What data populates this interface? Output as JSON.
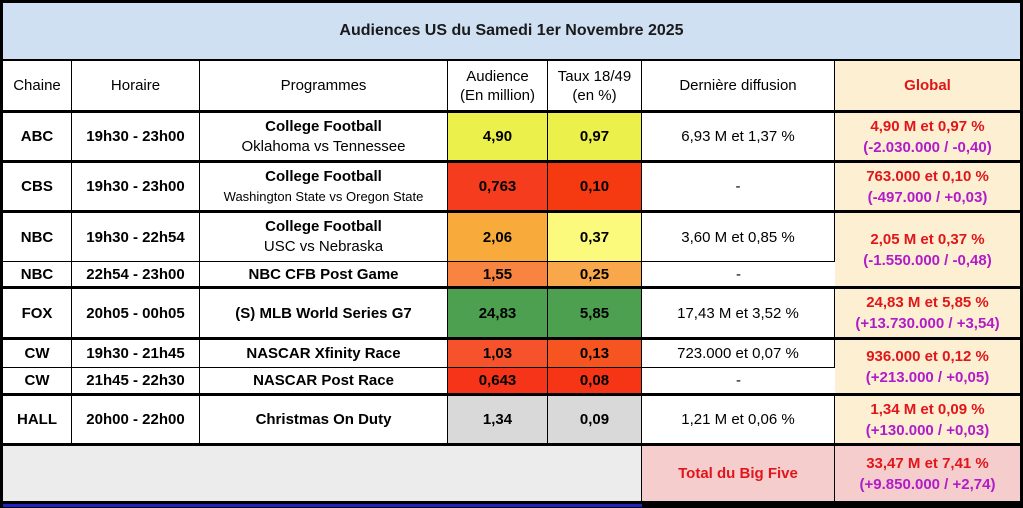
{
  "title": "Audiences US du Samedi 1er Novembre 2025",
  "headers": {
    "chaine": "Chaine",
    "horaire": "Horaire",
    "programmes": "Programmes",
    "audience_l1": "Audience",
    "audience_l2": "(En million)",
    "taux_l1": "Taux 18/49",
    "taux_l2": "(en %)",
    "derniere": "Dernière diffusion",
    "global": "Global"
  },
  "colors": {
    "title_bg": "#cfe0f2",
    "global_bg": "#fdefd2",
    "global_text": "#e0161a",
    "global_delta_text": "#b01cc8",
    "big_five_bg": "#f6cdcd"
  },
  "chart_data": {
    "type": "table",
    "title": "Audiences US du Samedi 1er Novembre 2025",
    "columns": [
      "Chaine",
      "Horaire",
      "Programmes",
      "Audience (En million)",
      "Taux 18/49 (en %)",
      "Dernière diffusion",
      "Global"
    ],
    "rows": [
      {
        "chaine": "ABC",
        "horaire": "19h30 - 23h00",
        "programme": "College Football",
        "sous_titre": "Oklahoma vs Tennessee",
        "audience": "4,90",
        "audience_color": "#ecf04a",
        "taux": "0,97",
        "taux_color": "#ecf04a",
        "derniere": "6,93 M et 1,37 %"
      },
      {
        "chaine": "CBS",
        "horaire": "19h30 - 23h00",
        "programme": "College Football",
        "sous_titre": "Washington State vs Oregon State",
        "audience": "0,763",
        "audience_color": "#f53c1e",
        "taux": "0,10",
        "taux_color": "#f53a12",
        "derniere": "-"
      },
      {
        "chaine": "NBC",
        "horaire": "19h30 - 22h54",
        "programme": "College Football",
        "sous_titre": "USC vs Nebraska",
        "audience": "2,06",
        "audience_color": "#f8ab3a",
        "taux": "0,37",
        "taux_color": "#fbfa7c",
        "derniere": "3,60 M et 0,85 %"
      },
      {
        "chaine": "NBC",
        "horaire": "22h54 - 23h00",
        "programme": "NBC CFB Post Game",
        "sous_titre": "",
        "audience": "1,55",
        "audience_color": "#f78440",
        "taux": "0,25",
        "taux_color": "#f8a84a",
        "derniere": "-"
      },
      {
        "chaine": "FOX",
        "horaire": "20h05 - 00h05",
        "programme": "(S) MLB World Series G7",
        "sous_titre": "",
        "audience": "24,83",
        "audience_color": "#4ca050",
        "taux": "5,85",
        "taux_color": "#4ca050",
        "derniere": "17,43 M et 3,52 %"
      },
      {
        "chaine": "CW",
        "horaire": "19h30 - 21h45",
        "programme": "NASCAR Xfinity Race",
        "sous_titre": "",
        "audience": "1,03",
        "audience_color": "#f6522c",
        "taux": "0,13",
        "taux_color": "#f65522",
        "derniere": "723.000 et 0,07 %"
      },
      {
        "chaine": "CW",
        "horaire": "21h45 - 22h30",
        "programme": "NASCAR Post Race",
        "sous_titre": "",
        "audience": "0,643",
        "audience_color": "#f53419",
        "taux": "0,08",
        "taux_color": "#f53516",
        "derniere": "-"
      },
      {
        "chaine": "HALL",
        "horaire": "20h00 - 22h00",
        "programme": "Christmas On Duty",
        "sous_titre": "",
        "audience": "1,34",
        "audience_color": "#d9d9d9",
        "taux": "0,09",
        "taux_color": "#d9d9d9",
        "derniere": "1,21 M et 0,06 %"
      }
    ],
    "global": [
      {
        "value": "4,90 M et 0,97 %",
        "delta": "(-2.030.000 / -0,40)"
      },
      {
        "value": "763.000 et 0,10 %",
        "delta": "(-497.000 / +0,03)"
      },
      {
        "value": "2,05 M et 0,37 %",
        "delta": "(-1.550.000 / -0,48)"
      },
      {
        "value": "24,83 M et 5,85 %",
        "delta": "(+13.730.000 / +3,54)"
      },
      {
        "value": "936.000 et 0,12 %",
        "delta": "(+213.000 / +0,05)"
      },
      {
        "value": "1,34 M et 0,09 %",
        "delta": "(+130.000 / +0,03)"
      }
    ],
    "total": {
      "label": "Total du Big Five",
      "value": "33,47 M et 7,41 %",
      "delta": "(+9.850.000 / +2,74)"
    }
  }
}
